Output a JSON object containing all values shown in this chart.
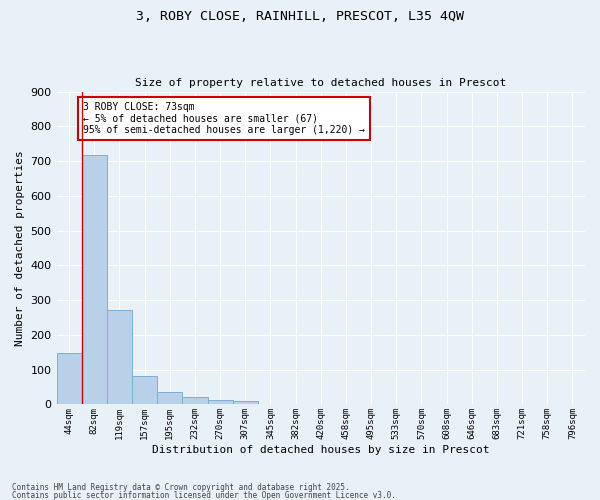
{
  "title_line1": "3, ROBY CLOSE, RAINHILL, PRESCOT, L35 4QW",
  "title_line2": "Size of property relative to detached houses in Prescot",
  "xlabel": "Distribution of detached houses by size in Prescot",
  "ylabel": "Number of detached properties",
  "bar_labels": [
    "44sqm",
    "82sqm",
    "119sqm",
    "157sqm",
    "195sqm",
    "232sqm",
    "270sqm",
    "307sqm",
    "345sqm",
    "382sqm",
    "420sqm",
    "458sqm",
    "495sqm",
    "533sqm",
    "570sqm",
    "608sqm",
    "646sqm",
    "683sqm",
    "721sqm",
    "758sqm",
    "796sqm"
  ],
  "bar_values": [
    148,
    718,
    271,
    83,
    37,
    22,
    12,
    10,
    0,
    0,
    0,
    0,
    0,
    0,
    0,
    0,
    0,
    0,
    0,
    0,
    0
  ],
  "bar_color": "#b8d0e8",
  "bar_edge_color": "#7aafd4",
  "ylim": [
    0,
    900
  ],
  "yticks": [
    0,
    100,
    200,
    300,
    400,
    500,
    600,
    700,
    800,
    900
  ],
  "annotation_text": "3 ROBY CLOSE: 73sqm\n← 5% of detached houses are smaller (67)\n95% of semi-detached houses are larger (1,220) →",
  "annotation_box_color": "#ffffff",
  "annotation_box_edge": "#cc0000",
  "footer_line1": "Contains HM Land Registry data © Crown copyright and database right 2025.",
  "footer_line2": "Contains public sector information licensed under the Open Government Licence v3.0.",
  "background_color": "#e8f0f8",
  "grid_color": "#ffffff",
  "property_line_color": "#cc0000",
  "property_line_x": 0.5
}
